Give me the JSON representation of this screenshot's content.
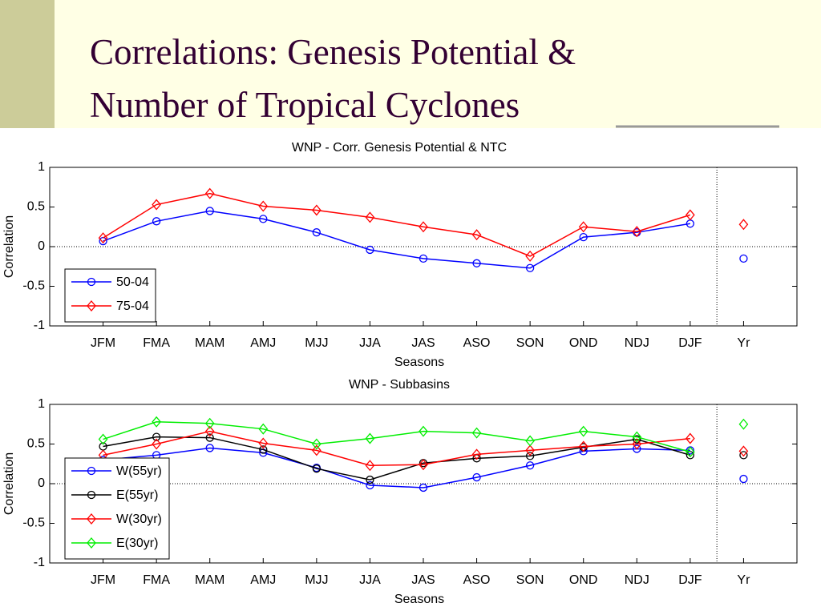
{
  "title": [
    "Correlations:  Genesis Potential &",
    "Number of Tropical Cyclones"
  ],
  "chart_data": [
    {
      "type": "line",
      "title": "WNP - Corr. Genesis Potential & NTC",
      "x_label": "Seasons",
      "y_label": "Correlation",
      "categories": [
        "JFM",
        "FMA",
        "MAM",
        "AMJ",
        "MJJ",
        "JJA",
        "JAS",
        "ASO",
        "SON",
        "OND",
        "NDJ",
        "DJF",
        "Yr"
      ],
      "ylim": [
        -1,
        1
      ],
      "yticks": [
        1,
        0.5,
        0,
        -0.5,
        -1
      ],
      "legend": "lower left",
      "series": [
        {
          "name": "50-04",
          "color": "#0000ff",
          "marker": "circle",
          "values": [
            0.07,
            0.32,
            0.45,
            0.35,
            0.18,
            -0.04,
            -0.15,
            -0.21,
            -0.27,
            0.12,
            0.18,
            0.29,
            -0.15
          ]
        },
        {
          "name": "75-04",
          "color": "#ff0000",
          "marker": "diamond",
          "values": [
            0.11,
            0.53,
            0.67,
            0.51,
            0.46,
            0.37,
            0.25,
            0.15,
            -0.12,
            0.25,
            0.19,
            0.4,
            0.28
          ]
        }
      ]
    },
    {
      "type": "line",
      "title": "WNP - Subbasins",
      "x_label": "Seasons",
      "y_label": "Correlation",
      "categories": [
        "JFM",
        "FMA",
        "MAM",
        "AMJ",
        "MJJ",
        "JJA",
        "JAS",
        "ASO",
        "SON",
        "OND",
        "NDJ",
        "DJF",
        "Yr"
      ],
      "ylim": [
        -1,
        1
      ],
      "yticks": [
        1,
        0.5,
        0,
        -0.5,
        -1
      ],
      "legend": "lower left",
      "series": [
        {
          "name": "W(55yr)",
          "color": "#0000ff",
          "marker": "circle",
          "values": [
            0.3,
            0.36,
            0.45,
            0.39,
            0.2,
            -0.02,
            -0.05,
            0.08,
            0.23,
            0.41,
            0.44,
            0.42,
            0.06
          ]
        },
        {
          "name": "E(55yr)",
          "color": "#000000",
          "marker": "circle",
          "values": [
            0.47,
            0.59,
            0.58,
            0.43,
            0.19,
            0.05,
            0.26,
            0.32,
            0.35,
            0.46,
            0.56,
            0.36,
            0.36
          ]
        },
        {
          "name": "W(30yr)",
          "color": "#ff0000",
          "marker": "diamond",
          "values": [
            0.36,
            0.5,
            0.66,
            0.51,
            0.42,
            0.23,
            0.24,
            0.37,
            0.42,
            0.47,
            0.5,
            0.57,
            0.41
          ]
        },
        {
          "name": "E(30yr)",
          "color": "#00ee00",
          "marker": "diamond",
          "values": [
            0.56,
            0.78,
            0.76,
            0.69,
            0.5,
            0.57,
            0.66,
            0.64,
            0.54,
            0.66,
            0.59,
            0.4,
            0.75
          ]
        }
      ]
    }
  ]
}
